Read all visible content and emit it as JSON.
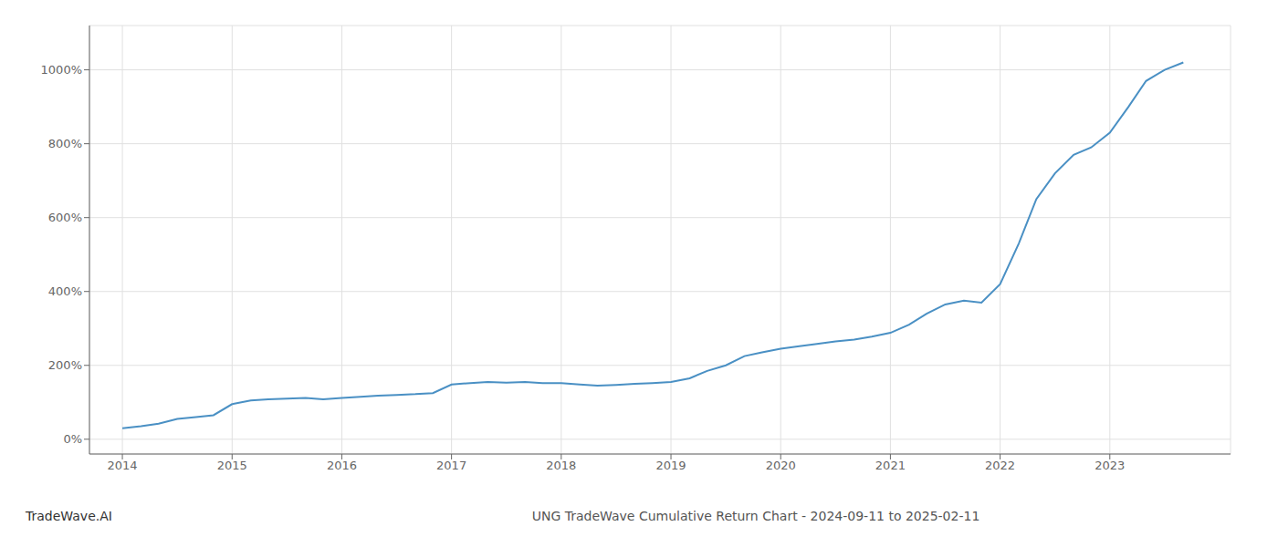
{
  "chart_data": {
    "type": "line",
    "title": "UNG TradeWave Cumulative Return Chart - 2024-09-11 to 2025-02-11",
    "annotations": [
      "TradeWave.AI"
    ],
    "x": [
      2014.0,
      2014.17,
      2014.33,
      2014.5,
      2014.67,
      2014.83,
      2015.0,
      2015.17,
      2015.33,
      2015.5,
      2015.67,
      2015.83,
      2016.0,
      2016.17,
      2016.33,
      2016.5,
      2016.67,
      2016.83,
      2017.0,
      2017.17,
      2017.33,
      2017.5,
      2017.67,
      2017.83,
      2018.0,
      2018.17,
      2018.33,
      2018.5,
      2018.67,
      2018.83,
      2019.0,
      2019.17,
      2019.33,
      2019.5,
      2019.67,
      2019.83,
      2020.0,
      2020.17,
      2020.33,
      2020.5,
      2020.67,
      2020.83,
      2021.0,
      2021.17,
      2021.33,
      2021.5,
      2021.67,
      2021.83,
      2022.0,
      2022.17,
      2022.33,
      2022.5,
      2022.67,
      2022.83,
      2023.0,
      2023.17,
      2023.33,
      2023.5,
      2023.67
    ],
    "values": [
      30,
      35,
      42,
      55,
      60,
      65,
      95,
      105,
      108,
      110,
      112,
      108,
      112,
      115,
      118,
      120,
      122,
      125,
      148,
      152,
      155,
      153,
      155,
      152,
      152,
      148,
      145,
      147,
      150,
      152,
      155,
      165,
      185,
      200,
      225,
      235,
      245,
      252,
      258,
      265,
      270,
      278,
      288,
      310,
      340,
      365,
      375,
      370,
      420,
      530,
      650,
      720,
      770,
      790,
      830,
      900,
      970,
      1000,
      1020
    ],
    "color": "#4a90c4",
    "xlim": [
      2013.7,
      2024.1
    ],
    "xticks": [
      2014,
      2015,
      2016,
      2017,
      2018,
      2019,
      2020,
      2021,
      2022,
      2023
    ],
    "ylim": [
      -40,
      1120
    ],
    "yticks": [
      {
        "value": 0,
        "label": "0%"
      },
      {
        "value": 200,
        "label": "200%"
      },
      {
        "value": 400,
        "label": "400%"
      },
      {
        "value": 600,
        "label": "600%"
      },
      {
        "value": 800,
        "label": "800%"
      },
      {
        "value": 1000,
        "label": "1000%"
      }
    ],
    "grid": true
  }
}
